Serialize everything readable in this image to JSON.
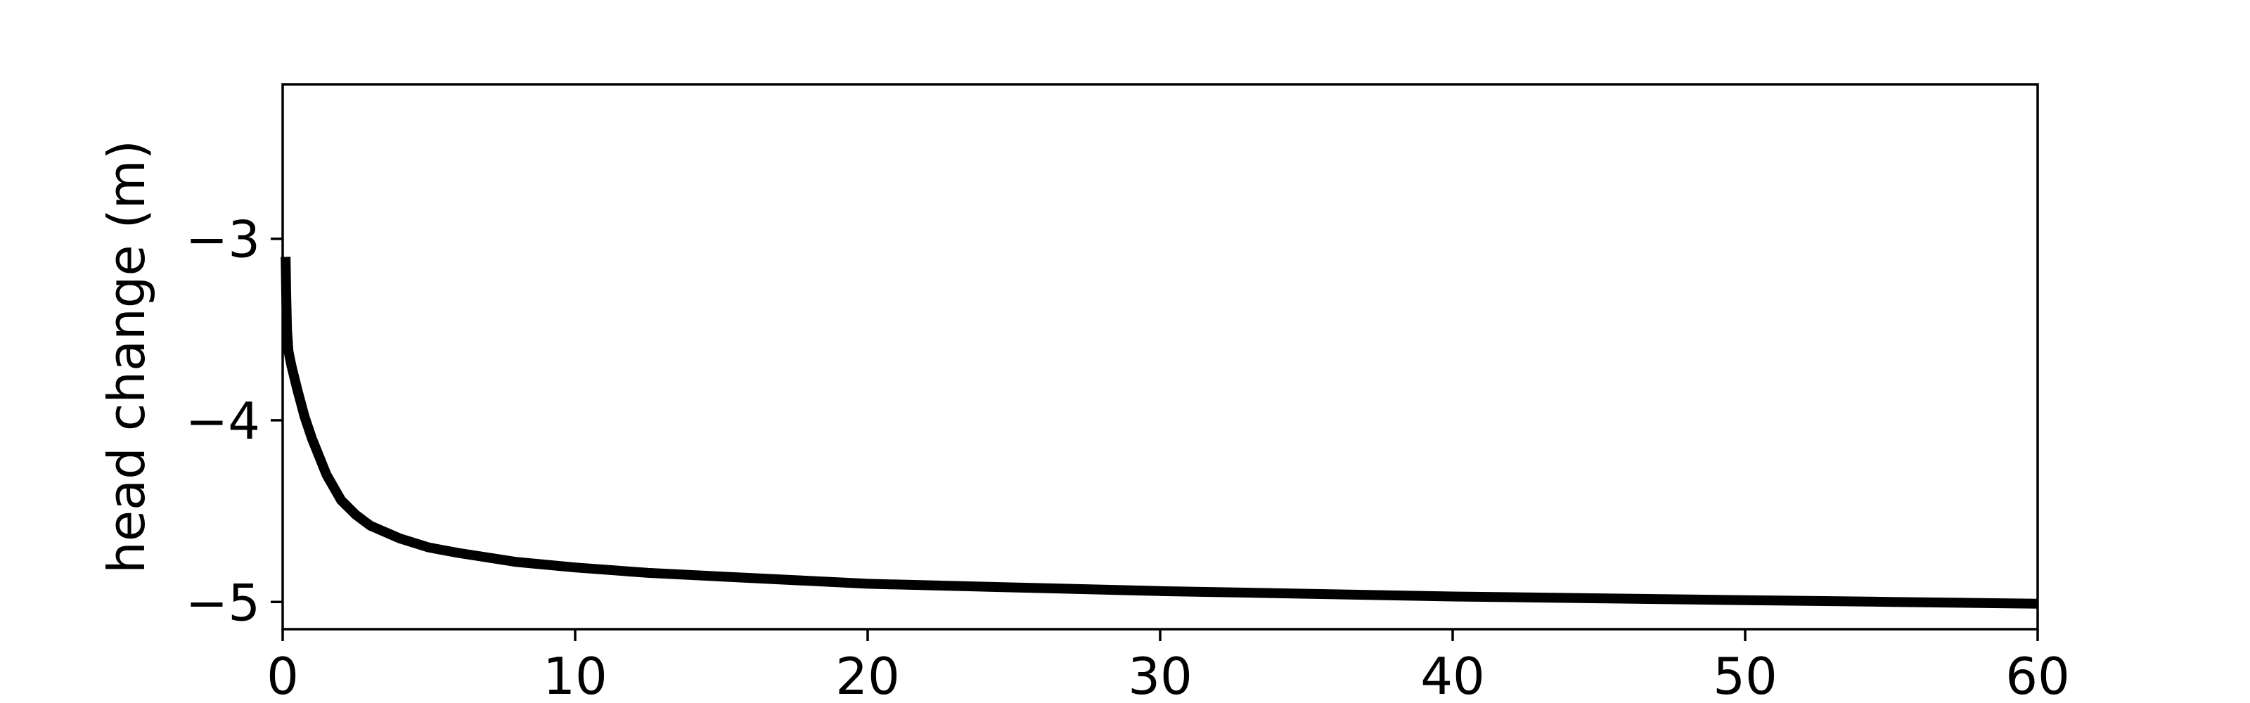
{
  "chart_data": {
    "type": "line",
    "title": "",
    "xlabel": "",
    "ylabel": "head change (m)",
    "xlim": [
      0,
      60
    ],
    "ylim": [
      -5.15,
      -2.15
    ],
    "xticks": [
      0,
      10,
      20,
      30,
      40,
      50,
      60
    ],
    "xtick_labels": [
      "0",
      "10",
      "20",
      "30",
      "40",
      "50",
      "60"
    ],
    "yticks": [
      -3,
      -4,
      -5
    ],
    "ytick_labels": [
      "−3",
      "−4",
      "−5"
    ],
    "grid": false,
    "legend": "none",
    "colors": {
      "line": "#000000",
      "axes": "#000000",
      "background": "#ffffff"
    },
    "series": [
      {
        "x": [
          0.1,
          0.12,
          0.15,
          0.2,
          0.3,
          0.5,
          0.75,
          1,
          1.5,
          2,
          2.5,
          3,
          4,
          5,
          6,
          8,
          10,
          12.5,
          15,
          20,
          25,
          30,
          35,
          40,
          45,
          50,
          55,
          60
        ],
        "y": [
          -3.1,
          -3.3,
          -3.5,
          -3.62,
          -3.7,
          -3.83,
          -3.98,
          -4.1,
          -4.3,
          -4.44,
          -4.52,
          -4.58,
          -4.65,
          -4.7,
          -4.73,
          -4.78,
          -4.81,
          -4.84,
          -4.86,
          -4.9,
          -4.92,
          -4.94,
          -4.955,
          -4.97,
          -4.98,
          -4.99,
          -5.0,
          -5.01
        ]
      }
    ]
  }
}
